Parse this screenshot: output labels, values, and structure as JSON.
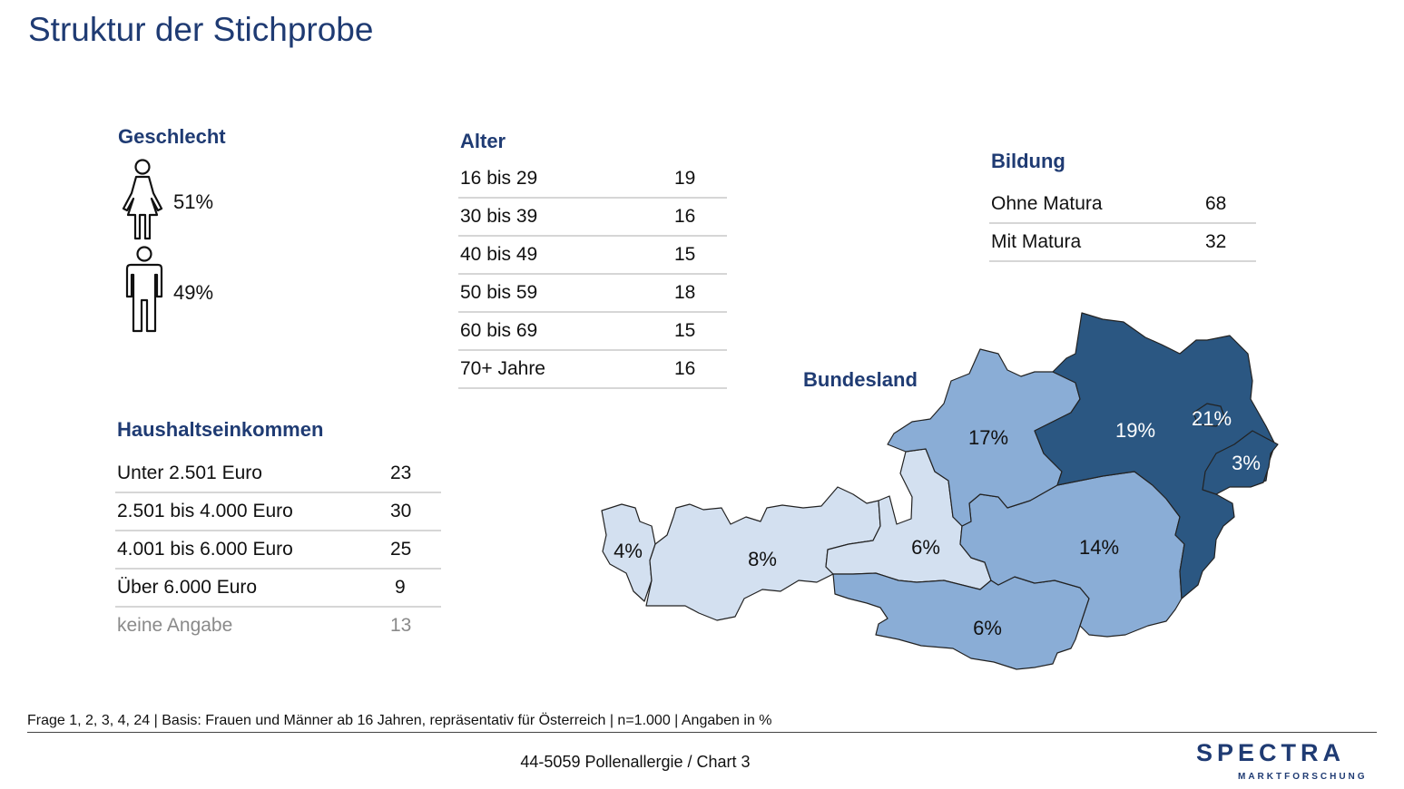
{
  "title": "Struktur der Stichprobe",
  "geschlecht": {
    "heading": "Geschlecht",
    "female_pct": "51%",
    "male_pct": "49%",
    "female_icon": "woman-icon",
    "male_icon": "man-icon"
  },
  "alter": {
    "heading": "Alter",
    "rows": [
      {
        "label": "16 bis 29",
        "value": "19"
      },
      {
        "label": "30 bis 39",
        "value": "16"
      },
      {
        "label": "40 bis 49",
        "value": "15"
      },
      {
        "label": "50 bis 59",
        "value": "18"
      },
      {
        "label": "60 bis 69",
        "value": "15"
      },
      {
        "label": "70+ Jahre",
        "value": "16"
      }
    ]
  },
  "bildung": {
    "heading": "Bildung",
    "rows": [
      {
        "label": "Ohne Matura",
        "value": "68"
      },
      {
        "label": "Mit Matura",
        "value": "32"
      }
    ]
  },
  "einkommen": {
    "heading": "Haushaltseinkommen",
    "rows": [
      {
        "label": "Unter 2.501 Euro",
        "value": "23"
      },
      {
        "label": "2.501 bis 4.000 Euro",
        "value": "30"
      },
      {
        "label": "4.001 bis 6.000 Euro",
        "value": "25"
      },
      {
        "label": "Über 6.000 Euro",
        "value": "9"
      },
      {
        "label": "keine Angabe",
        "value": "13"
      }
    ]
  },
  "bundesland": {
    "heading": "Bundesland",
    "labels": [
      "4%",
      "8%",
      "6%",
      "17%",
      "19%",
      "21%",
      "3%",
      "14%",
      "6%"
    ]
  },
  "colors": {
    "dark": "#2b5782",
    "mid": "#8aadd6",
    "light": "#d3e0f0",
    "heading": "#1f3b73"
  },
  "chart_data": {
    "type": "table",
    "title": "Struktur der Stichprobe",
    "sections": [
      {
        "name": "Geschlecht",
        "categories": [
          "Frauen",
          "Männer"
        ],
        "values": [
          51,
          49
        ]
      },
      {
        "name": "Alter",
        "categories": [
          "16 bis 29",
          "30 bis 39",
          "40 bis 49",
          "50 bis 59",
          "60 bis 69",
          "70+ Jahre"
        ],
        "values": [
          19,
          16,
          15,
          18,
          15,
          16
        ]
      },
      {
        "name": "Bildung",
        "categories": [
          "Ohne Matura",
          "Mit Matura"
        ],
        "values": [
          68,
          32
        ]
      },
      {
        "name": "Haushaltseinkommen",
        "categories": [
          "Unter 2.501 Euro",
          "2.501 bis 4.000 Euro",
          "4.001 bis 6.000 Euro",
          "Über 6.000 Euro",
          "keine Angabe"
        ],
        "values": [
          23,
          30,
          25,
          9,
          13
        ]
      },
      {
        "name": "Bundesland",
        "categories": [
          "Vorarlberg",
          "Tirol",
          "Salzburg",
          "Oberösterreich",
          "Niederösterreich",
          "Wien",
          "Burgenland",
          "Steiermark",
          "Kärnten"
        ],
        "values": [
          4,
          8,
          6,
          17,
          19,
          21,
          3,
          14,
          6
        ]
      }
    ]
  },
  "footer": {
    "note": "Frage 1, 2, 3, 4, 24 | Basis: Frauen und Männer ab 16 Jahren, repräsentativ für Österreich | n=1.000 | Angaben in %",
    "center": "44-5059 Pollenallergie  /  Chart 3",
    "logo_main": "SPECTRA",
    "logo_sub": "MARKTFORSCHUNG"
  }
}
